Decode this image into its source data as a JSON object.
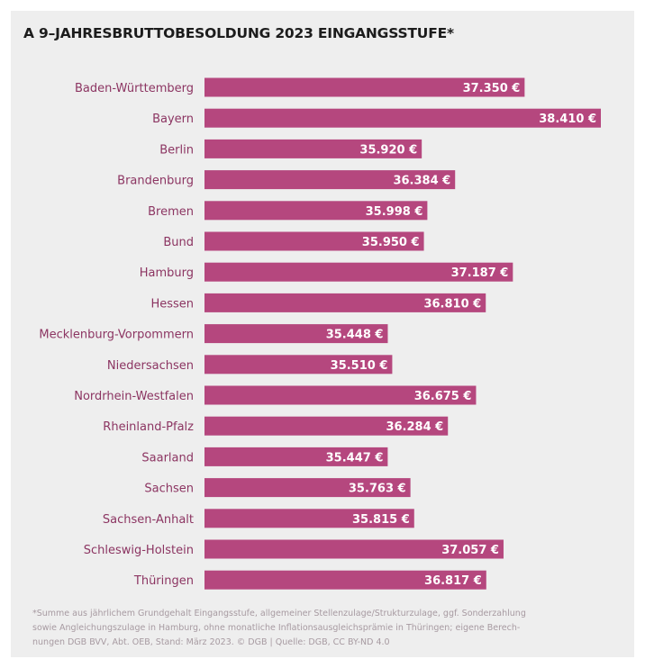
{
  "chart_data": {
    "type": "bar",
    "orientation": "horizontal",
    "title": "A 9–JAHRESBRUTTOBESOLDUNG 2023 EINGANGSSTUFE*",
    "categories": [
      "Baden-Württemberg",
      "Bayern",
      "Berlin",
      "Brandenburg",
      "Bremen",
      "Bund",
      "Hamburg",
      "Hessen",
      "Mecklenburg-Vorpommern",
      "Niedersachsen",
      "Nordrhein-Westfalen",
      "Rheinland-Pfalz",
      "Saarland",
      "Sachsen",
      "Sachsen-Anhalt",
      "Schleswig-Holstein",
      "Thüringen"
    ],
    "values": [
      37350,
      38410,
      35920,
      36384,
      35998,
      35950,
      37187,
      36810,
      35448,
      35510,
      36675,
      36284,
      35447,
      35763,
      35815,
      37057,
      36817
    ],
    "value_labels": [
      "37.350 €",
      "38.410 €",
      "35.920 €",
      "36.384 €",
      "35.998 €",
      "35.950 €",
      "37.187 €",
      "36.810 €",
      "35.448 €",
      "35.510 €",
      "36.675 €",
      "36.284 €",
      "35.447 €",
      "35.763 €",
      "35.815 €",
      "37.057 €",
      "36.817 €"
    ],
    "bar_color": "#b5477e",
    "label_color": "#8c3562",
    "value_label_color": "#ffffff",
    "grid": false,
    "legend": "none"
  },
  "footnote": {
    "lines": [
      "*Summe aus jährlichem Grundgehalt Eingangsstufe, allgemeiner Stellenzulage/Strukturzulage, ggf. Sonderzahlung",
      "sowie Angleichungszulage in Hamburg, ohne monatliche Inflationsausgleichsprämie in Thüringen; eigene Berech-",
      "nungen DGB BVV, Abt. OEB, Stand: März 2023. © DGB | Quelle: DGB, CC BY-ND 4.0"
    ]
  }
}
